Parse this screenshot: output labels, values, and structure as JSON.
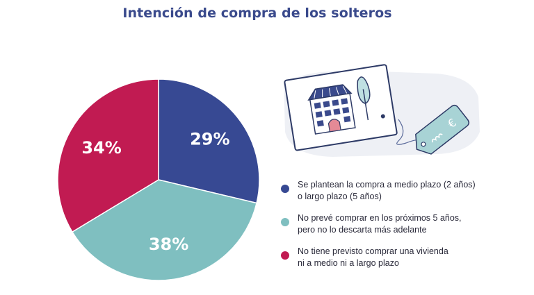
{
  "chart_data": {
    "type": "pie",
    "title": "Intención de compra de los solteros",
    "start_angle_deg": 0,
    "direction": "clockwise",
    "legend_placement": "right",
    "slices": [
      {
        "label": "Se plantean la compra a medio plazo (2 años) o largo plazo (5 años)",
        "value": 29,
        "display": "29%",
        "color": "#374993"
      },
      {
        "label": "No prevé comprar en los próximos 5 años, pero no lo descarta más adelante",
        "value": 38,
        "display": "38%",
        "color": "#7fbfc0"
      },
      {
        "label": "No tiene previsto comprar una vivienda ni a medio ni a largo plazo",
        "value": 34,
        "display": "34%",
        "color": "#c11b52"
      }
    ]
  },
  "legend": {
    "items": [
      {
        "line1": "Se plantean la compra a medio plazo (2 años)",
        "line2": "o largo plazo (5 años)",
        "color": "#374993"
      },
      {
        "line1": "No prevé comprar en los próximos 5 años,",
        "line2": "pero no lo descarta más adelante",
        "color": "#7fbfc0"
      },
      {
        "line1": "No tiene previsto comprar una vivienda",
        "line2": "ni a medio ni a largo plazo",
        "color": "#c11b52"
      }
    ]
  },
  "illustration": {
    "icon": "house-card-with-price-tag-icon",
    "tag_symbol": "€"
  }
}
